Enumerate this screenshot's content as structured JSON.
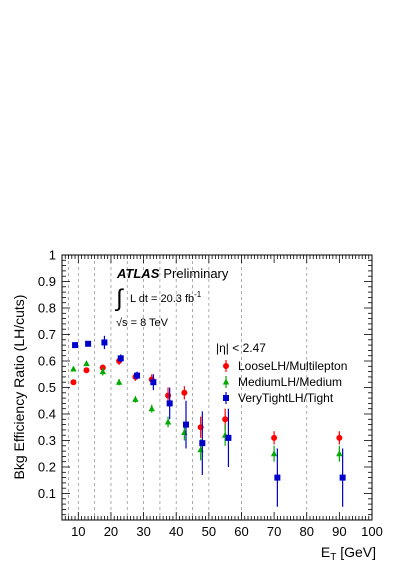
{
  "chart_data": {
    "type": "scatter",
    "title": "",
    "xlabel_main": "E",
    "xlabel_sub": "T",
    "xlabel_unit": " [GeV]",
    "ylabel": "Bkg Efficiency Ratio (LH/cuts)",
    "xlim": [
      5,
      100
    ],
    "ylim": [
      0,
      1
    ],
    "x_ticks": [
      "10",
      "20",
      "30",
      "40",
      "50",
      "60",
      "70",
      "80",
      "90",
      "100"
    ],
    "y_ticks": [
      "0.1",
      "0.2",
      "0.3",
      "0.4",
      "0.5",
      "0.6",
      "0.7",
      "0.8",
      "0.9",
      "1"
    ],
    "bin_edges": [
      7,
      10,
      15,
      20,
      25,
      30,
      35,
      40,
      45,
      50,
      60,
      80
    ],
    "atlas_label": "ATLAS",
    "atlas_sub": "Preliminary",
    "lumi_prefix": "L dt = 20.3 fb",
    "lumi_sup": "-1",
    "energy": "√s = 8 TeV",
    "eta_cut": "|η| < 2.47",
    "legend_position": "right",
    "colors": {
      "loose": "#ff0000",
      "medium": "#00aa00",
      "tight": "#0000cc"
    },
    "series": [
      {
        "name": "LooseLH/Multilepton",
        "marker": "circle",
        "color": "#ff0000",
        "x": [
          8.5,
          12.5,
          17.5,
          22.5,
          27.5,
          32.5,
          37.5,
          42.5,
          47.5,
          55.0,
          70.0,
          90.0
        ],
        "y": [
          0.52,
          0.565,
          0.575,
          0.6,
          0.54,
          0.53,
          0.47,
          0.48,
          0.35,
          0.38,
          0.31,
          0.31
        ],
        "err": [
          0.008,
          0.008,
          0.012,
          0.015,
          0.015,
          0.02,
          0.03,
          0.025,
          0.04,
          0.04,
          0.025,
          0.025
        ]
      },
      {
        "name": "MediumLH/Medium",
        "marker": "triangle",
        "color": "#00aa00",
        "x": [
          8.5,
          12.5,
          17.5,
          22.5,
          27.5,
          32.5,
          37.5,
          42.5,
          47.5,
          55.0,
          70.0,
          90.0
        ],
        "y": [
          0.57,
          0.59,
          0.56,
          0.52,
          0.455,
          0.42,
          0.37,
          0.33,
          0.265,
          0.32,
          0.25,
          0.25
        ],
        "err": [
          0.008,
          0.008,
          0.015,
          0.012,
          0.012,
          0.015,
          0.02,
          0.03,
          0.04,
          0.04,
          0.03,
          0.03
        ]
      },
      {
        "name": "VeryTightLH/Tight",
        "marker": "square",
        "color": "#0000cc",
        "x": [
          9.0,
          13.0,
          18.0,
          23.0,
          28.0,
          33.0,
          38.0,
          43.0,
          48.0,
          56.0,
          71.0,
          91.0
        ],
        "y": [
          0.66,
          0.665,
          0.67,
          0.61,
          0.545,
          0.52,
          0.44,
          0.36,
          0.29,
          0.31,
          0.16,
          0.16
        ],
        "err": [
          0.008,
          0.01,
          0.025,
          0.015,
          0.015,
          0.03,
          0.06,
          0.09,
          0.12,
          0.11,
          0.11,
          0.11
        ]
      }
    ]
  }
}
